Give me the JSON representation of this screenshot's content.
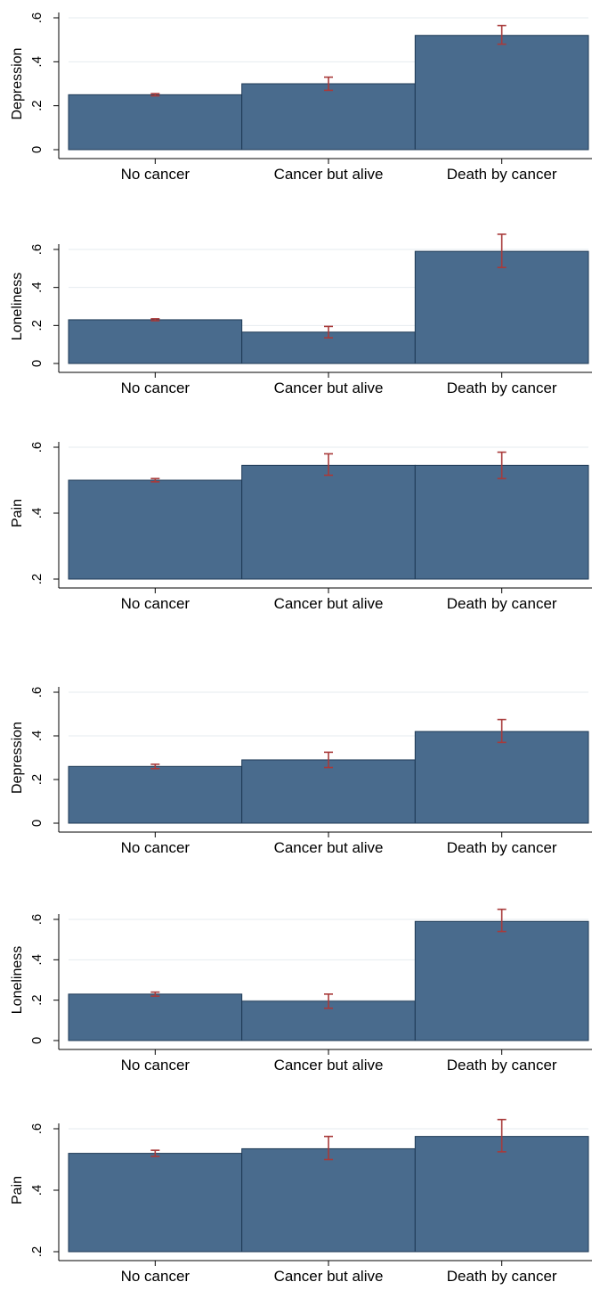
{
  "chart_data": [
    {
      "type": "bar",
      "ylabel": "Depression",
      "categories": [
        "No cancer",
        "Cancer but alive",
        "Death by cancer"
      ],
      "values": [
        0.25,
        0.3,
        0.52
      ],
      "ci_low": [
        0.245,
        0.27,
        0.48
      ],
      "ci_high": [
        0.255,
        0.33,
        0.565
      ],
      "ylim": [
        0,
        0.6
      ],
      "yticks": [
        0,
        0.2,
        0.4,
        0.6
      ],
      "ytick_labels": [
        "0",
        ".2",
        ".4",
        ".6"
      ]
    },
    {
      "type": "bar",
      "ylabel": "Loneliness",
      "categories": [
        "No cancer",
        "Cancer but alive",
        "Death by cancer"
      ],
      "values": [
        0.23,
        0.165,
        0.59
      ],
      "ci_low": [
        0.225,
        0.135,
        0.505
      ],
      "ci_high": [
        0.235,
        0.195,
        0.68
      ],
      "ylim": [
        0,
        0.6
      ],
      "yticks": [
        0,
        0.2,
        0.4,
        0.6
      ],
      "ytick_labels": [
        "0",
        ".2",
        ".4",
        ".6"
      ]
    },
    {
      "type": "bar",
      "ylabel": "Pain",
      "categories": [
        "No cancer",
        "Cancer but alive",
        "Death by cancer"
      ],
      "values": [
        0.5,
        0.545,
        0.545
      ],
      "ci_low": [
        0.495,
        0.515,
        0.505
      ],
      "ci_high": [
        0.505,
        0.58,
        0.585
      ],
      "ylim": [
        0.2,
        0.6
      ],
      "yticks": [
        0.2,
        0.4,
        0.6
      ],
      "ytick_labels": [
        ".2",
        ".4",
        ".6"
      ]
    },
    {
      "type": "bar",
      "ylabel": "Depression",
      "categories": [
        "No cancer",
        "Cancer but alive",
        "Death by cancer"
      ],
      "values": [
        0.26,
        0.29,
        0.42
      ],
      "ci_low": [
        0.25,
        0.255,
        0.37
      ],
      "ci_high": [
        0.27,
        0.325,
        0.475
      ],
      "ylim": [
        0,
        0.6
      ],
      "yticks": [
        0,
        0.2,
        0.4,
        0.6
      ],
      "ytick_labels": [
        "0",
        ".2",
        ".4",
        ".6"
      ]
    },
    {
      "type": "bar",
      "ylabel": "Loneliness",
      "categories": [
        "No cancer",
        "Cancer but alive",
        "Death by cancer"
      ],
      "values": [
        0.23,
        0.195,
        0.59
      ],
      "ci_low": [
        0.22,
        0.16,
        0.54
      ],
      "ci_high": [
        0.24,
        0.23,
        0.65
      ],
      "ylim": [
        0,
        0.6
      ],
      "yticks": [
        0,
        0.2,
        0.4,
        0.6
      ],
      "ytick_labels": [
        "0",
        ".2",
        ".4",
        ".6"
      ]
    },
    {
      "type": "bar",
      "ylabel": "Pain",
      "categories": [
        "No cancer",
        "Cancer but alive",
        "Death by cancer"
      ],
      "values": [
        0.52,
        0.535,
        0.575
      ],
      "ci_low": [
        0.51,
        0.5,
        0.525
      ],
      "ci_high": [
        0.53,
        0.575,
        0.63
      ],
      "ylim": [
        0.2,
        0.6
      ],
      "yticks": [
        0.2,
        0.4,
        0.6
      ],
      "ytick_labels": [
        ".2",
        ".4",
        ".6"
      ]
    }
  ],
  "colors": {
    "bar_fill": "#496b8d",
    "bar_stroke": "#1e3a56",
    "errorbar": "#a83a3a",
    "grid": "#e6ebef",
    "axis": "#000000"
  }
}
